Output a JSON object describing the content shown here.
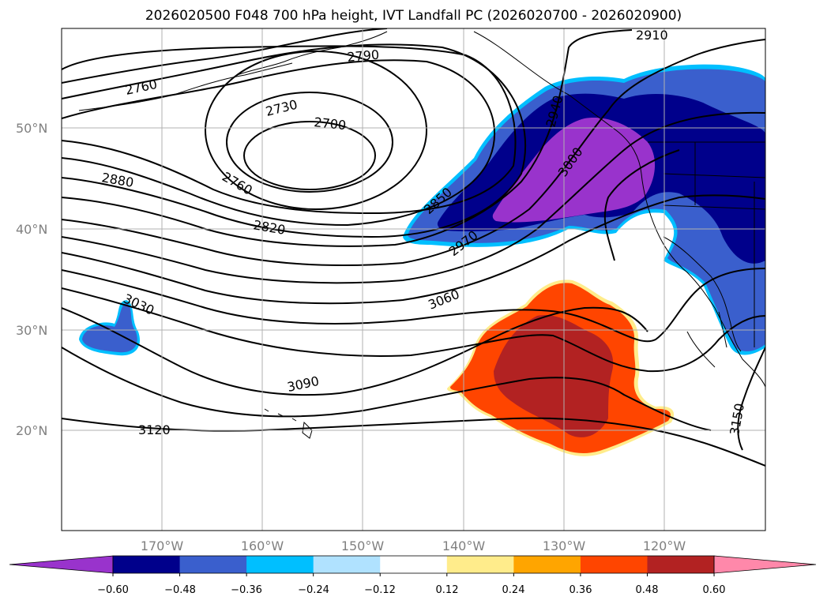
{
  "title": "2026020500 F048 700 hPa height, IVT Landfall PC (2026020700 - 2026020900)",
  "lat_labels": [
    "50°N",
    "40°N",
    "30°N",
    "20°N"
  ],
  "lon_labels": [
    "170°W",
    "160°W",
    "150°W",
    "140°W",
    "130°W",
    "120°W"
  ],
  "contour_labels": [
    "2910",
    "2790",
    "2760",
    "2730",
    "2700",
    "2880",
    "2760",
    "2850",
    "2820",
    "2970",
    "3000",
    "2940",
    "3030",
    "3060",
    "3090",
    "3120",
    "3150"
  ],
  "colorbar": {
    "ticks": [
      "−0.60",
      "−0.48",
      "−0.36",
      "−0.24",
      "−0.12",
      "0.12",
      "0.24",
      "0.36",
      "0.48",
      "0.60"
    ],
    "colors": [
      "#9933cc",
      "#00008b",
      "#3a5fcd",
      "#00bfff",
      "#b0e2ff",
      "#ffffff",
      "#ffec8b",
      "#ffa500",
      "#ff4500",
      "#b22222",
      "#ff88aa"
    ]
  }
}
